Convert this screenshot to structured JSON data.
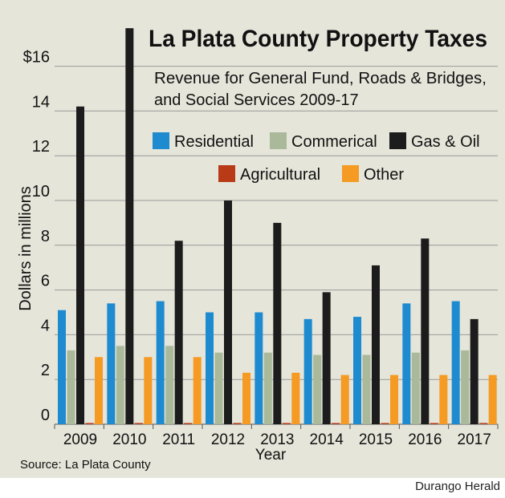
{
  "chart_data": {
    "type": "bar",
    "title": "La Plata County Property Taxes",
    "subtitle": [
      "Revenue for General Fund, Roads & Bridges,",
      "and Social Services 2009-17"
    ],
    "xlabel": "Year",
    "ylabel": "Dollars in millions",
    "ylim": [
      0,
      17.5
    ],
    "yticks": [
      "0",
      "2",
      "4",
      "6",
      "8",
      "10",
      "12",
      "14",
      "$16"
    ],
    "grid": true,
    "legend_position": "top-right",
    "categories": [
      "2009",
      "2010",
      "2011",
      "2012",
      "2013",
      "2014",
      "2015",
      "2016",
      "2017"
    ],
    "series": [
      {
        "name": "Residential",
        "color": "#1e8bd0",
        "values": [
          5.1,
          5.4,
          5.5,
          5.0,
          5.0,
          4.7,
          4.8,
          5.4,
          5.5
        ]
      },
      {
        "name": "Commerical",
        "color": "#a9b99a",
        "values": [
          3.3,
          3.5,
          3.5,
          3.2,
          3.2,
          3.1,
          3.1,
          3.2,
          3.3
        ]
      },
      {
        "name": "Gas & Oil",
        "color": "#1c1c1c",
        "values": [
          14.2,
          17.7,
          8.2,
          10.0,
          9.0,
          5.9,
          7.1,
          8.3,
          4.7
        ]
      },
      {
        "name": "Agricultural",
        "color": "#b83a16",
        "values": [
          0.05,
          0.05,
          0.05,
          0.05,
          0.05,
          0.05,
          0.05,
          0.05,
          0.05
        ]
      },
      {
        "name": "Other",
        "color": "#f59a23",
        "values": [
          3.0,
          3.0,
          3.0,
          2.3,
          2.3,
          2.2,
          2.2,
          2.2,
          2.2
        ]
      }
    ],
    "source": "Source: La Plata County"
  },
  "credit": "Durango Herald",
  "colors": {
    "panel": "#e5e5da",
    "grid": "#9a9a9a"
  }
}
